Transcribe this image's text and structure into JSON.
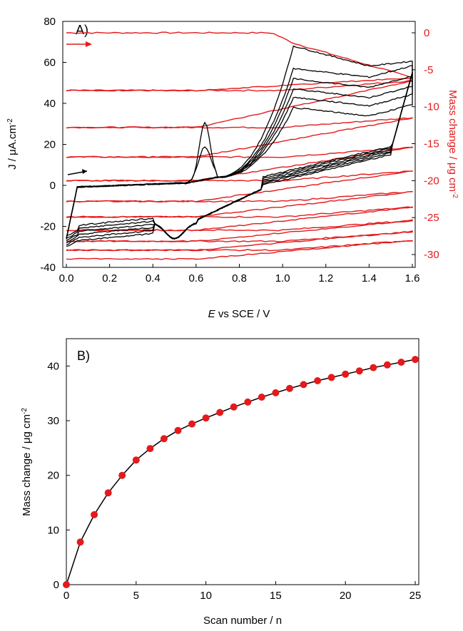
{
  "chart_data": [
    {
      "type": "line",
      "panel_label": "A)",
      "xlabel_italic": "E",
      "xlabel_rest": " vs SCE / V",
      "ylabel": "J / μA.cm",
      "ylabel_sup": "-2",
      "y2label": "Mass change / μg cm",
      "y2label_sup": "-2",
      "xlim": [
        0,
        1.6
      ],
      "ylim": [
        -40,
        80
      ],
      "y2lim": [
        -30,
        2
      ],
      "x_ticks": [
        "0.0",
        "0.2",
        "0.4",
        "0.6",
        "0.8",
        "1.0",
        "1.2",
        "1.4",
        "1.6"
      ],
      "y_ticks": [
        "-40",
        "-20",
        "0",
        "20",
        "40",
        "60",
        "80"
      ],
      "y2_ticks": [
        "0",
        "-5",
        "-10",
        "-15",
        "-20",
        "-25",
        "-30"
      ],
      "colors": {
        "current": "#000000",
        "mass": "#e41a1c"
      },
      "scan_levels": [
        0,
        -7.8,
        -12.8,
        -16.8,
        -20.0,
        -22.8,
        -24.9,
        -26.7,
        -28.2,
        -29.4
      ],
      "current_peak_at_1_05": [
        68,
        57,
        52,
        47,
        43,
        38
      ],
      "grid": false
    },
    {
      "type": "scatter",
      "panel_label": "B)",
      "xlabel": "Scan number / n",
      "ylabel": "Mass change / μg cm",
      "ylabel_sup": "-2",
      "xlim": [
        0,
        25
      ],
      "ylim": [
        0,
        45
      ],
      "x_ticks": [
        "0",
        "5",
        "10",
        "15",
        "20",
        "25"
      ],
      "y_ticks": [
        "0",
        "10",
        "20",
        "30",
        "40"
      ],
      "x": [
        0,
        1,
        2,
        3,
        4,
        5,
        6,
        7,
        8,
        9,
        10,
        11,
        12,
        13,
        14,
        15,
        16,
        17,
        18,
        19,
        20,
        21,
        22,
        23,
        24,
        25
      ],
      "y": [
        0,
        7.8,
        12.8,
        16.8,
        20.0,
        22.8,
        24.9,
        26.7,
        28.2,
        29.4,
        30.5,
        31.5,
        32.5,
        33.4,
        34.3,
        35.1,
        35.9,
        36.6,
        37.3,
        37.9,
        38.5,
        39.1,
        39.7,
        40.2,
        40.7,
        41.2
      ],
      "colors": {
        "marker": "#e41a1c",
        "line": "#000000"
      },
      "grid": false
    }
  ]
}
